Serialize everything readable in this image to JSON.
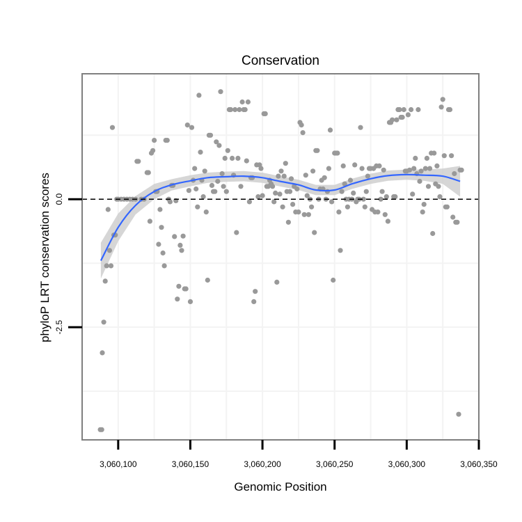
{
  "chart_data": {
    "type": "scatter",
    "title": "Conservation",
    "xlabel": "Genomic Position",
    "ylabel": "phyloP LRT conservation scores",
    "xlim": [
      3060075,
      3060350
    ],
    "ylim": [
      -4.7,
      2.45
    ],
    "x_ticks": [
      {
        "value": 3060100,
        "label": "3,060,100"
      },
      {
        "value": 3060150,
        "label": "3,060,150"
      },
      {
        "value": 3060200,
        "label": "3,060,200"
      },
      {
        "value": 3060250,
        "label": "3,060,250"
      },
      {
        "value": 3060300,
        "label": "3,060,300"
      },
      {
        "value": 3060350,
        "label": "3,060,350"
      }
    ],
    "y_ticks": [
      {
        "value": 0.0,
        "label": "0.0"
      },
      {
        "value": -2.5,
        "label": "-2.5"
      }
    ],
    "reference_line": {
      "y": 0,
      "style": "dashed",
      "color": "#000000"
    },
    "grid": true,
    "colors": {
      "points": "#999999",
      "smooth": "#3366ff",
      "band": "#cccccc",
      "panel_border": "#7f7f7f",
      "grid": "#f3f3f3"
    },
    "series": [
      {
        "name": "phyloP scores",
        "points": [
          [
            3060087.6,
            -4.5
          ],
          [
            3060088.6,
            -4.5
          ],
          [
            3060089,
            -3
          ],
          [
            3060090,
            -2.4
          ],
          [
            3060091,
            -1.6
          ],
          [
            3060092,
            -1.3
          ],
          [
            3060093,
            -0.2
          ],
          [
            3060094,
            -1
          ],
          [
            3060095,
            -1.3
          ],
          [
            3060096,
            1.4
          ],
          [
            3060097,
            -0.7
          ],
          [
            3060098,
            -0.7
          ],
          [
            3060099,
            0
          ],
          [
            3060100,
            0
          ],
          [
            3060102,
            0
          ],
          [
            3060104,
            0
          ],
          [
            3060106,
            0
          ],
          [
            3060108,
            0
          ],
          [
            3060110,
            0
          ],
          [
            3060112,
            0
          ],
          [
            3060113,
            0.74
          ],
          [
            3060114,
            0.74
          ],
          [
            3060116,
            0
          ],
          [
            3060118,
            0
          ],
          [
            3060120,
            0.52
          ],
          [
            3060121,
            0.52
          ],
          [
            3060122,
            -0.43
          ],
          [
            3060123,
            0.9
          ],
          [
            3060124,
            0.95
          ],
          [
            3060125,
            1.15
          ],
          [
            3060126,
            0.15
          ],
          [
            3060127,
            0.15
          ],
          [
            3060128,
            -0.88
          ],
          [
            3060129,
            -0.2
          ],
          [
            3060130,
            -0.55
          ],
          [
            3060131,
            -1.05
          ],
          [
            3060132,
            -1.3
          ],
          [
            3060133,
            1.15
          ],
          [
            3060134,
            1.15
          ],
          [
            3060135,
            0
          ],
          [
            3060136,
            -0.05
          ],
          [
            3060137,
            0.27
          ],
          [
            3060138,
            0.27
          ],
          [
            3060139,
            -0.73
          ],
          [
            3060140,
            -0.03
          ],
          [
            3060141,
            -1.95
          ],
          [
            3060142,
            -1.7
          ],
          [
            3060143,
            -0.9
          ],
          [
            3060144,
            -1.0
          ],
          [
            3060145,
            -0.72
          ],
          [
            3060146,
            -1.75
          ],
          [
            3060147,
            -1.75
          ],
          [
            3060148,
            1.45
          ],
          [
            3060149,
            0.17
          ],
          [
            3060150,
            -2.0
          ],
          [
            3060151,
            1.4
          ],
          [
            3060152,
            0.37
          ],
          [
            3060153,
            0.6
          ],
          [
            3060154,
            0.2
          ],
          [
            3060155,
            -0.15
          ],
          [
            3060156,
            2.03
          ],
          [
            3060157,
            0.92
          ],
          [
            3060158,
            0.37
          ],
          [
            3060159,
            0.05
          ],
          [
            3060160,
            0.55
          ],
          [
            3060161,
            -0.25
          ],
          [
            3060162,
            -1.58
          ],
          [
            3060163,
            1.25
          ],
          [
            3060164,
            1.25
          ],
          [
            3060165,
            0.27
          ],
          [
            3060166,
            0.15
          ],
          [
            3060167,
            0.15
          ],
          [
            3060168,
            1.12
          ],
          [
            3060169,
            0.35
          ],
          [
            3060170,
            1.05
          ],
          [
            3060171,
            2.1
          ],
          [
            3060172,
            0.5
          ],
          [
            3060173,
            0.25
          ],
          [
            3060174,
            0.8
          ],
          [
            3060175,
            0.15
          ],
          [
            3060176,
            0.95
          ],
          [
            3060177,
            1.75
          ],
          [
            3060178,
            1.75
          ],
          [
            3060179,
            0.8
          ],
          [
            3060180,
            0.47
          ],
          [
            3060181,
            1.75
          ],
          [
            3060182,
            -0.65
          ],
          [
            3060183,
            0.8
          ],
          [
            3060184,
            1.75
          ],
          [
            3060185,
            0.25
          ],
          [
            3060186,
            1.9
          ],
          [
            3060187,
            1.75
          ],
          [
            3060188,
            1.75
          ],
          [
            3060189,
            0.75
          ],
          [
            3060190,
            1.9
          ],
          [
            3060191,
            -0.05
          ],
          [
            3060192,
            0.42
          ],
          [
            3060193,
            0.42
          ],
          [
            3060194,
            -2.0
          ],
          [
            3060195,
            -1.8
          ],
          [
            3060196,
            0.67
          ],
          [
            3060197,
            0.05
          ],
          [
            3060198,
            0.67
          ],
          [
            3060199,
            0.6
          ],
          [
            3060200,
            0.07
          ],
          [
            3060201,
            1.67
          ],
          [
            3060202,
            1.67
          ],
          [
            3060203,
            0.25
          ],
          [
            3060204,
            0.25
          ],
          [
            3060205,
            0.37
          ],
          [
            3060206,
            0.3
          ],
          [
            3060207,
            0.25
          ],
          [
            3060208,
            -0.05
          ],
          [
            3060209,
            0.12
          ],
          [
            3060210,
            -1.62
          ],
          [
            3060211,
            0.45
          ],
          [
            3060212,
            0.1
          ],
          [
            3060213,
            0.55
          ],
          [
            3060214,
            -0.15
          ],
          [
            3060215,
            0.45
          ],
          [
            3060216,
            0.7
          ],
          [
            3060217,
            0.15
          ],
          [
            3060218,
            -0.45
          ],
          [
            3060219,
            0.15
          ],
          [
            3060220,
            0.4
          ],
          [
            3060221,
            -0.1
          ],
          [
            3060222,
            0.25
          ],
          [
            3060223,
            -0.25
          ],
          [
            3060224,
            0.2
          ],
          [
            3060225,
            -0.25
          ],
          [
            3060226,
            1.5
          ],
          [
            3060227,
            1.45
          ],
          [
            3060228,
            1.3
          ],
          [
            3060229,
            -0.3
          ],
          [
            3060230,
            0.47
          ],
          [
            3060231,
            0.07
          ],
          [
            3060232,
            -0.3
          ],
          [
            3060233,
            0
          ],
          [
            3060234,
            -0.15
          ],
          [
            3060235,
            0.55
          ],
          [
            3060236,
            -0.65
          ],
          [
            3060237,
            0.95
          ],
          [
            3060238,
            0.95
          ],
          [
            3060239,
            0
          ],
          [
            3060240,
            0.2
          ],
          [
            3060241,
            0.37
          ],
          [
            3060242,
            0.2
          ],
          [
            3060243,
            0.42
          ],
          [
            3060244,
            0
          ],
          [
            3060245,
            0.15
          ],
          [
            3060246,
            0.6
          ],
          [
            3060247,
            1.35
          ],
          [
            3060248,
            -0.05
          ],
          [
            3060249,
            -1.58
          ],
          [
            3060250,
            0.9
          ],
          [
            3060251,
            0.9
          ],
          [
            3060252,
            0.9
          ],
          [
            3060253,
            -0.25
          ],
          [
            3060254,
            -1.0
          ],
          [
            3060255,
            0.15
          ],
          [
            3060256,
            0.65
          ],
          [
            3060257,
            0.3
          ],
          [
            3060258,
            0
          ],
          [
            3060259,
            -0.15
          ],
          [
            3060260,
            0
          ],
          [
            3060261,
            0.37
          ],
          [
            3060262,
            0
          ],
          [
            3060263,
            0.12
          ],
          [
            3060264,
            0.67
          ],
          [
            3060265,
            -0.05
          ],
          [
            3060266,
            0
          ],
          [
            3060267,
            0
          ],
          [
            3060268,
            1.4
          ],
          [
            3060269,
            0.6
          ],
          [
            3060270,
            0
          ],
          [
            3060271,
            -0.15
          ],
          [
            3060272,
            0.15
          ],
          [
            3060273,
            0.45
          ],
          [
            3060274,
            0.6
          ],
          [
            3060275,
            0.6
          ],
          [
            3060276,
            -0.2
          ],
          [
            3060277,
            0.6
          ],
          [
            3060278,
            -0.25
          ],
          [
            3060279,
            0.65
          ],
          [
            3060280,
            -0.25
          ],
          [
            3060281,
            0.65
          ],
          [
            3060282,
            0
          ],
          [
            3060283,
            0.15
          ],
          [
            3060284,
            0.57
          ],
          [
            3060285,
            -0.3
          ],
          [
            3060286,
            0.05
          ],
          [
            3060287,
            -0.43
          ],
          [
            3060288,
            1.5
          ],
          [
            3060289,
            1.5
          ],
          [
            3060290,
            1.55
          ],
          [
            3060291,
            0.05
          ],
          [
            3060292,
            0.05
          ],
          [
            3060293,
            1.55
          ],
          [
            3060294,
            1.75
          ],
          [
            3060295,
            1.75
          ],
          [
            3060296,
            1.6
          ],
          [
            3060297,
            1.6
          ],
          [
            3060298,
            1.75
          ],
          [
            3060299,
            0.55
          ],
          [
            3060300,
            0.55
          ],
          [
            3060301,
            1.65
          ],
          [
            3060302,
            0.57
          ],
          [
            3060303,
            1.75
          ],
          [
            3060304,
            0.1
          ],
          [
            3060305,
            0.6
          ],
          [
            3060306,
            0.8
          ],
          [
            3060307,
            0.5
          ],
          [
            3060308,
            1.75
          ],
          [
            3060309,
            0.35
          ],
          [
            3060310,
            0.55
          ],
          [
            3060311,
            -0.25
          ],
          [
            3060312,
            -0.1
          ],
          [
            3060313,
            0.6
          ],
          [
            3060314,
            0.8
          ],
          [
            3060315,
            0.25
          ],
          [
            3060316,
            0.6
          ],
          [
            3060317,
            0.9
          ],
          [
            3060318,
            -0.67
          ],
          [
            3060319,
            0.9
          ],
          [
            3060320,
            0.3
          ],
          [
            3060321,
            0.65
          ],
          [
            3060322,
            0.25
          ],
          [
            3060323,
            0.05
          ],
          [
            3060324,
            1.8
          ],
          [
            3060325,
            1.95
          ],
          [
            3060326,
            0.85
          ],
          [
            3060327,
            -0.15
          ],
          [
            3060328,
            -0.15
          ],
          [
            3060329,
            1.75
          ],
          [
            3060330,
            1.75
          ],
          [
            3060331,
            0.85
          ],
          [
            3060332,
            -0.35
          ],
          [
            3060333,
            0.5
          ],
          [
            3060334,
            -0.45
          ],
          [
            3060335,
            -0.45
          ],
          [
            3060336,
            -4.2
          ],
          [
            3060337,
            0.57
          ],
          [
            3060338,
            0.57
          ]
        ]
      }
    ],
    "smooth": {
      "x": [
        3060088,
        3060100,
        3060112,
        3060125,
        3060137,
        3060150,
        3060162,
        3060175,
        3060187,
        3060200,
        3060212,
        3060225,
        3060237,
        3060250,
        3060262,
        3060275,
        3060287,
        3060300,
        3060312,
        3060325,
        3060337
      ],
      "y": [
        -1.2,
        -0.55,
        -0.12,
        0.15,
        0.28,
        0.36,
        0.42,
        0.44,
        0.45,
        0.42,
        0.35,
        0.28,
        0.18,
        0.18,
        0.3,
        0.4,
        0.46,
        0.48,
        0.47,
        0.45,
        0.35
      ],
      "lower": [
        -1.55,
        -0.82,
        -0.3,
        0.0,
        0.17,
        0.25,
        0.32,
        0.34,
        0.35,
        0.32,
        0.25,
        0.18,
        0.08,
        0.08,
        0.2,
        0.3,
        0.36,
        0.38,
        0.36,
        0.3,
        0.05
      ],
      "upper": [
        -0.85,
        -0.28,
        0.06,
        0.3,
        0.39,
        0.47,
        0.52,
        0.54,
        0.55,
        0.52,
        0.45,
        0.38,
        0.28,
        0.28,
        0.4,
        0.5,
        0.56,
        0.58,
        0.58,
        0.6,
        0.65
      ]
    }
  }
}
